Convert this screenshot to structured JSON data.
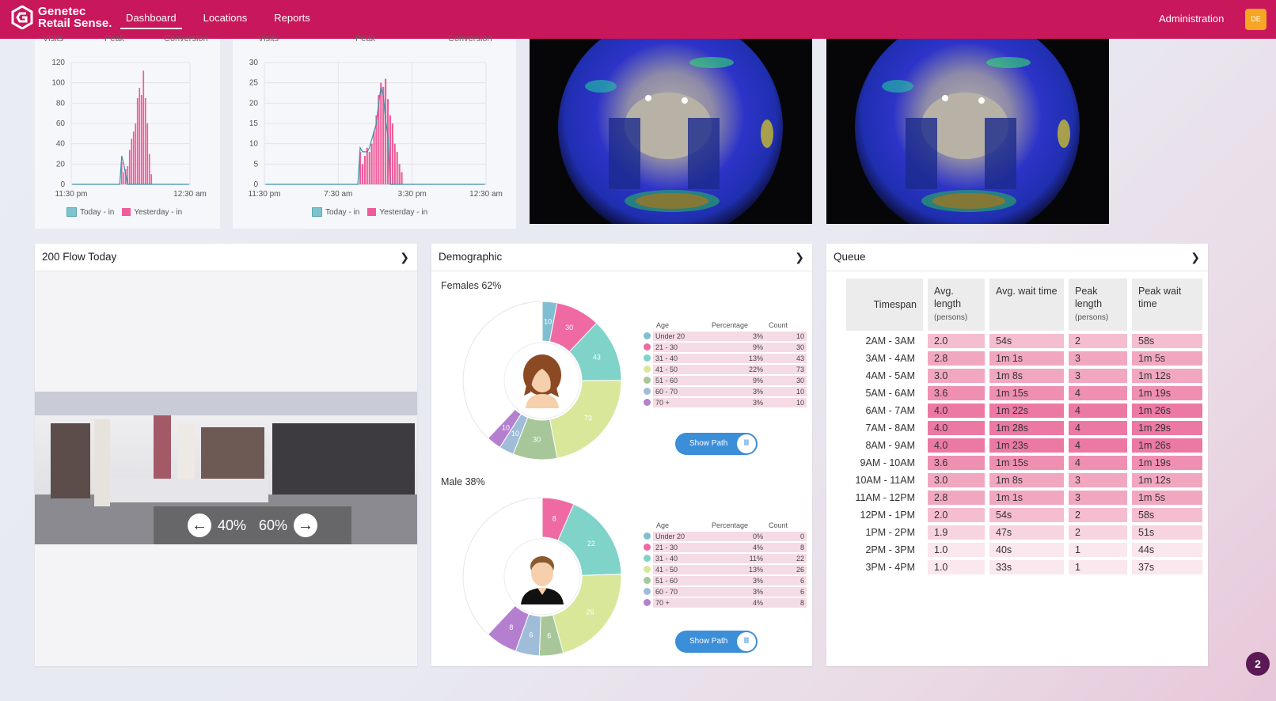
{
  "brand": {
    "line1": "Genetec",
    "line2": "Retail Sense."
  },
  "nav": [
    {
      "label": "Dashboard",
      "active": true
    },
    {
      "label": "Locations",
      "active": false
    },
    {
      "label": "Reports",
      "active": false
    }
  ],
  "admin_label": "Administration",
  "user_initials": "DE",
  "colors": {
    "brand": "#c8175a",
    "today": "#7fc3cf",
    "yesterday": "#ee5d99",
    "accent_blue": "#3b8ed8"
  },
  "chart_data": [
    {
      "type": "bar",
      "headers": [
        "Visits",
        "Peak",
        "Conversion"
      ],
      "yticks": [
        0,
        20,
        40,
        60,
        80,
        100,
        120
      ],
      "ylim": [
        0,
        120
      ],
      "xticks": [
        "11:30 pm",
        "12:30 am"
      ],
      "legend": [
        "Today - in",
        "Yesterday - in"
      ],
      "series": [
        {
          "name": "Yesterday - in",
          "values": [
            0,
            0,
            0,
            0,
            0,
            0,
            0,
            0,
            0,
            0,
            0,
            0,
            0,
            0,
            0,
            0,
            0,
            0,
            0,
            0,
            0,
            0,
            0,
            0,
            0,
            22,
            12,
            15,
            18,
            34,
            45,
            52,
            60,
            85,
            95,
            88,
            112,
            85,
            60,
            30,
            10,
            0,
            0,
            0,
            0,
            0,
            0,
            0,
            0,
            0,
            0,
            0,
            0,
            0,
            0,
            0,
            0,
            0,
            0,
            0
          ]
        },
        {
          "name": "Today - in",
          "values": [
            0,
            0,
            0,
            0,
            0,
            0,
            0,
            0,
            0,
            0,
            0,
            0,
            0,
            0,
            0,
            0,
            0,
            0,
            0,
            0,
            0,
            0,
            0,
            0,
            0,
            28,
            20,
            10,
            0,
            0,
            0,
            0,
            0,
            0,
            0,
            0,
            0,
            0,
            0,
            0,
            0,
            0,
            0,
            0,
            0,
            0,
            0,
            0,
            0,
            0,
            0,
            0,
            0,
            0,
            0,
            0,
            0,
            0,
            0,
            0
          ]
        }
      ]
    },
    {
      "type": "bar",
      "headers": [
        "Visits",
        "Peak",
        "Conversion"
      ],
      "yticks": [
        0,
        5,
        10,
        15,
        20,
        25,
        30
      ],
      "ylim": [
        0,
        30
      ],
      "xticks": [
        "11:30 pm",
        "7:30 am",
        "3:30 pm",
        "12:30 am"
      ],
      "legend": [
        "Today - in",
        "Yesterday - in"
      ],
      "series": [
        {
          "name": "Yesterday - in",
          "values": [
            0,
            0,
            0,
            0,
            0,
            0,
            0,
            0,
            0,
            0,
            0,
            0,
            0,
            0,
            0,
            0,
            0,
            0,
            0,
            0,
            0,
            0,
            0,
            0,
            0,
            0,
            0,
            0,
            0,
            0,
            0,
            0,
            0,
            0,
            0,
            0,
            0,
            0,
            0,
            0,
            0,
            8,
            5,
            7,
            9,
            8,
            10,
            13,
            17,
            22,
            25,
            24,
            26,
            21,
            17,
            15,
            10,
            8,
            5,
            3,
            0,
            0,
            0,
            0,
            0,
            0,
            0,
            0,
            0,
            0,
            0,
            0,
            0,
            0,
            0,
            0,
            0,
            0,
            0,
            0,
            0,
            0,
            0,
            0,
            0,
            0,
            0,
            0,
            0,
            0,
            0,
            0,
            0,
            0,
            0,
            0
          ]
        },
        {
          "name": "Today - in",
          "values": [
            0,
            0,
            0,
            0,
            0,
            0,
            0,
            0,
            0,
            0,
            0,
            0,
            0,
            0,
            0,
            0,
            0,
            0,
            0,
            0,
            0,
            0,
            0,
            0,
            0,
            0,
            0,
            0,
            0,
            0,
            0,
            0,
            0,
            0,
            0,
            0,
            0,
            0,
            0,
            0,
            0,
            9,
            8,
            8,
            8,
            9,
            11,
            13,
            15,
            20,
            24,
            22,
            16,
            12,
            0,
            0,
            0,
            0,
            0,
            0,
            0,
            0,
            0,
            0,
            0,
            0,
            0,
            0,
            0,
            0,
            0,
            0,
            0,
            0,
            0,
            0,
            0,
            0,
            0,
            0,
            0,
            0,
            0,
            0,
            0,
            0,
            0,
            0,
            0,
            0,
            0,
            0,
            0,
            0,
            0,
            0
          ]
        }
      ]
    }
  ],
  "flow": {
    "title": "200 Flow Today",
    "left_pct": "40%",
    "right_pct": "60%"
  },
  "demographic": {
    "title": "Demographic",
    "table_headers": [
      "Age",
      "Percentage",
      "Count"
    ],
    "show_path_label": "Show Path",
    "groups": [
      {
        "title": "Females 62%",
        "rows": [
          {
            "age": "Under 20",
            "pct": "3%",
            "count": 10,
            "color": "#80bfd1"
          },
          {
            "age": "21 - 30",
            "pct": "9%",
            "count": 30,
            "color": "#ef6aa3"
          },
          {
            "age": "31 - 40",
            "pct": "13%",
            "count": 43,
            "color": "#7fd3c9"
          },
          {
            "age": "41 - 50",
            "pct": "22%",
            "count": 73,
            "color": "#d8e79a"
          },
          {
            "age": "51 - 60",
            "pct": "9%",
            "count": 30,
            "color": "#a7c79b"
          },
          {
            "age": "60 - 70",
            "pct": "3%",
            "count": 10,
            "color": "#9fbcd8"
          },
          {
            "age": "70 +",
            "pct": "3%",
            "count": 10,
            "color": "#b57fcf"
          }
        ]
      },
      {
        "title": "Male 38%",
        "rows": [
          {
            "age": "Under 20",
            "pct": "0%",
            "count": 0,
            "color": "#80bfd1"
          },
          {
            "age": "21 - 30",
            "pct": "4%",
            "count": 8,
            "color": "#ef6aa3"
          },
          {
            "age": "31 - 40",
            "pct": "11%",
            "count": 22,
            "color": "#7fd3c9"
          },
          {
            "age": "41 - 50",
            "pct": "13%",
            "count": 26,
            "color": "#d8e79a"
          },
          {
            "age": "51 - 60",
            "pct": "3%",
            "count": 6,
            "color": "#a7c79b"
          },
          {
            "age": "60 - 70",
            "pct": "3%",
            "count": 6,
            "color": "#9fbcd8"
          },
          {
            "age": "70 +",
            "pct": "4%",
            "count": 8,
            "color": "#b57fcf"
          }
        ]
      }
    ]
  },
  "queue": {
    "title": "Queue",
    "headers": [
      {
        "label": "Timespan",
        "sub": ""
      },
      {
        "label": "Avg. length",
        "sub": "(persons)"
      },
      {
        "label": "Avg. wait time",
        "sub": ""
      },
      {
        "label": "Peak length",
        "sub": "(persons)"
      },
      {
        "label": "Peak wait time",
        "sub": ""
      }
    ],
    "rows": [
      {
        "ts": "2AM - 3AM",
        "avg_len": "2.0",
        "avg_wait": "54s",
        "peak_len": "2",
        "peak_wait": "58s",
        "level": 2
      },
      {
        "ts": "3AM - 4AM",
        "avg_len": "2.8",
        "avg_wait": "1m 1s",
        "peak_len": "3",
        "peak_wait": "1m 5s",
        "level": 3
      },
      {
        "ts": "4AM - 5AM",
        "avg_len": "3.0",
        "avg_wait": "1m 8s",
        "peak_len": "3",
        "peak_wait": "1m 12s",
        "level": 3
      },
      {
        "ts": "5AM - 6AM",
        "avg_len": "3.6",
        "avg_wait": "1m 15s",
        "peak_len": "4",
        "peak_wait": "1m 19s",
        "level": 4
      },
      {
        "ts": "6AM - 7AM",
        "avg_len": "4.0",
        "avg_wait": "1m 22s",
        "peak_len": "4",
        "peak_wait": "1m 26s",
        "level": 5
      },
      {
        "ts": "7AM - 8AM",
        "avg_len": "4.0",
        "avg_wait": "1m 28s",
        "peak_len": "4",
        "peak_wait": "1m 29s",
        "level": 5
      },
      {
        "ts": "8AM - 9AM",
        "avg_len": "4.0",
        "avg_wait": "1m 23s",
        "peak_len": "4",
        "peak_wait": "1m 26s",
        "level": 5
      },
      {
        "ts": "9AM - 10AM",
        "avg_len": "3.6",
        "avg_wait": "1m 15s",
        "peak_len": "4",
        "peak_wait": "1m 19s",
        "level": 4
      },
      {
        "ts": "10AM - 11AM",
        "avg_len": "3.0",
        "avg_wait": "1m 8s",
        "peak_len": "3",
        "peak_wait": "1m 12s",
        "level": 3
      },
      {
        "ts": "11AM - 12PM",
        "avg_len": "2.8",
        "avg_wait": "1m 1s",
        "peak_len": "3",
        "peak_wait": "1m 5s",
        "level": 3
      },
      {
        "ts": "12PM - 1PM",
        "avg_len": "2.0",
        "avg_wait": "54s",
        "peak_len": "2",
        "peak_wait": "58s",
        "level": 2
      },
      {
        "ts": "1PM - 2PM",
        "avg_len": "1.9",
        "avg_wait": "47s",
        "peak_len": "2",
        "peak_wait": "51s",
        "level": 1
      },
      {
        "ts": "2PM - 3PM",
        "avg_len": "1.0",
        "avg_wait": "40s",
        "peak_len": "1",
        "peak_wait": "44s",
        "level": 0
      },
      {
        "ts": "3PM - 4PM",
        "avg_len": "1.0",
        "avg_wait": "33s",
        "peak_len": "1",
        "peak_wait": "37s",
        "level": 0
      }
    ]
  },
  "help_count": "2",
  "icons": [
    "genetec-logo-icon",
    "chevron-right-icon",
    "arrow-left-icon",
    "arrow-right-icon",
    "female-avatar-icon",
    "male-avatar-icon",
    "path-icon"
  ]
}
